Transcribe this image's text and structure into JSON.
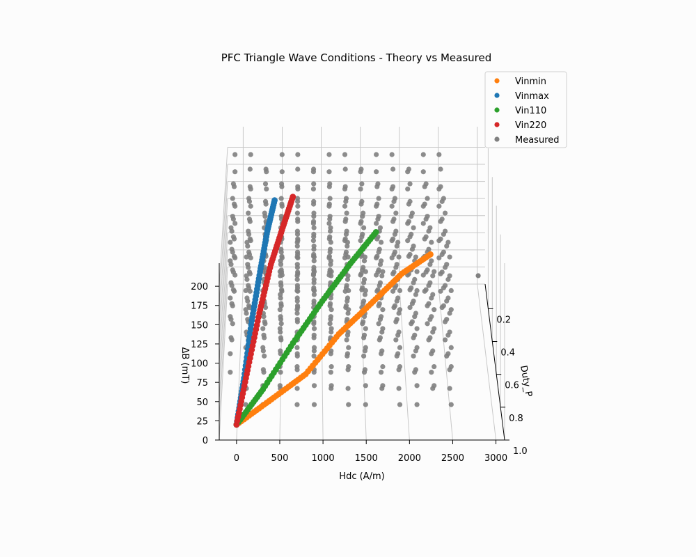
{
  "chart_data": {
    "type": "scatter",
    "title": "PFC Triangle Wave Conditions - Theory vs Measured",
    "xlabel": "Hdc (A/m)",
    "ylabel": "Duty_P",
    "zlabel": "ΔB (mT)",
    "xlim": [
      -200,
      3100
    ],
    "ylim": [
      0.05,
      1.0
    ],
    "zlim": [
      0,
      230
    ],
    "x_ticks": [
      "0",
      "500",
      "1000",
      "1500",
      "2000",
      "2500",
      "3000"
    ],
    "x_tick_values": [
      0,
      500,
      1000,
      1500,
      2000,
      2500,
      3000
    ],
    "y_ticks": [
      "0.2",
      "0.4",
      "0.6",
      "0.8",
      "1.0"
    ],
    "y_tick_values": [
      0.2,
      0.4,
      0.6,
      0.8,
      1.0
    ],
    "z_ticks": [
      "0",
      "25",
      "50",
      "75",
      "100",
      "125",
      "150",
      "175",
      "200"
    ],
    "z_tick_values": [
      0,
      25,
      50,
      75,
      100,
      125,
      150,
      175,
      200
    ],
    "grid": true,
    "legend_position": "top-right",
    "series": [
      {
        "name": "Vinmin",
        "color": "#ff7f0e",
        "points": [
          [
            0,
            1.0,
            20
          ],
          [
            400,
            0.9,
            32
          ],
          [
            800,
            0.8,
            44
          ],
          [
            1200,
            0.6,
            55
          ],
          [
            1600,
            0.45,
            64
          ],
          [
            2000,
            0.3,
            73
          ],
          [
            2400,
            0.2,
            80
          ]
        ]
      },
      {
        "name": "Vinmax",
        "color": "#1f77b4",
        "points": [
          [
            0,
            1.0,
            20
          ],
          [
            80,
            0.9,
            60
          ],
          [
            160,
            0.75,
            105
          ],
          [
            250,
            0.6,
            140
          ],
          [
            330,
            0.45,
            165
          ],
          [
            420,
            0.3,
            180
          ]
        ]
      },
      {
        "name": "Vin110",
        "color": "#2ca02c",
        "points": [
          [
            0,
            1.0,
            20
          ],
          [
            300,
            0.9,
            45
          ],
          [
            650,
            0.75,
            75
          ],
          [
            1000,
            0.6,
            100
          ],
          [
            1350,
            0.45,
            120
          ],
          [
            1700,
            0.3,
            135
          ]
        ]
      },
      {
        "name": "Vin220",
        "color": "#d62728",
        "points": [
          [
            0,
            1.0,
            20
          ],
          [
            120,
            0.9,
            70
          ],
          [
            250,
            0.75,
            115
          ],
          [
            380,
            0.6,
            150
          ],
          [
            520,
            0.45,
            170
          ],
          [
            650,
            0.3,
            185
          ]
        ]
      },
      {
        "name": "Measured",
        "color": "#808080",
        "hdc_levels": [
          -100,
          100,
          300,
          500,
          700,
          900,
          1100,
          1300,
          1500,
          1700,
          1900,
          2100,
          2300,
          2500
        ],
        "duty_levels": [
          0.1,
          0.2,
          0.3,
          0.4,
          0.5,
          0.6,
          0.7,
          0.8,
          0.9
        ],
        "db_levels": [
          25,
          50,
          75,
          100,
          125,
          150,
          175,
          200
        ]
      }
    ]
  }
}
